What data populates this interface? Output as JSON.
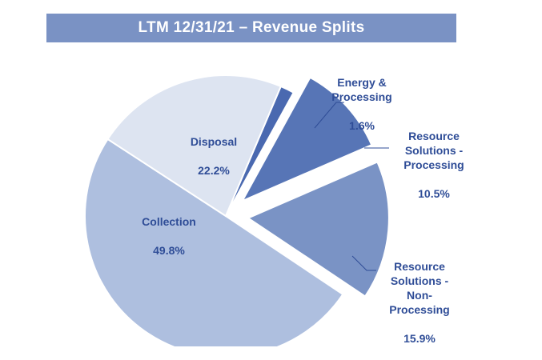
{
  "chart_data": {
    "type": "pie",
    "title": "LTM 12/31/21 – Revenue Splits",
    "slices": [
      {
        "label": "Energy &\nProcessing",
        "value": 1.6,
        "value_label": "1.6%",
        "color": "#4a69b0",
        "exploded": false
      },
      {
        "label": "Resource\nSolutions -\nProcessing",
        "value": 10.5,
        "value_label": "10.5%",
        "color": "#5775b6",
        "exploded": true
      },
      {
        "label": "Resource\nSolutions -\nNon-\nProcessing",
        "value": 15.9,
        "value_label": "15.9%",
        "color": "#7a93c5",
        "exploded": true
      },
      {
        "label": "Collection",
        "value": 49.8,
        "value_label": "49.8%",
        "color": "#aebfdf",
        "exploded": false
      },
      {
        "label": "Disposal",
        "value": 22.2,
        "value_label": "22.2%",
        "color": "#dde4f1",
        "exploded": false
      }
    ],
    "legend": "none"
  }
}
